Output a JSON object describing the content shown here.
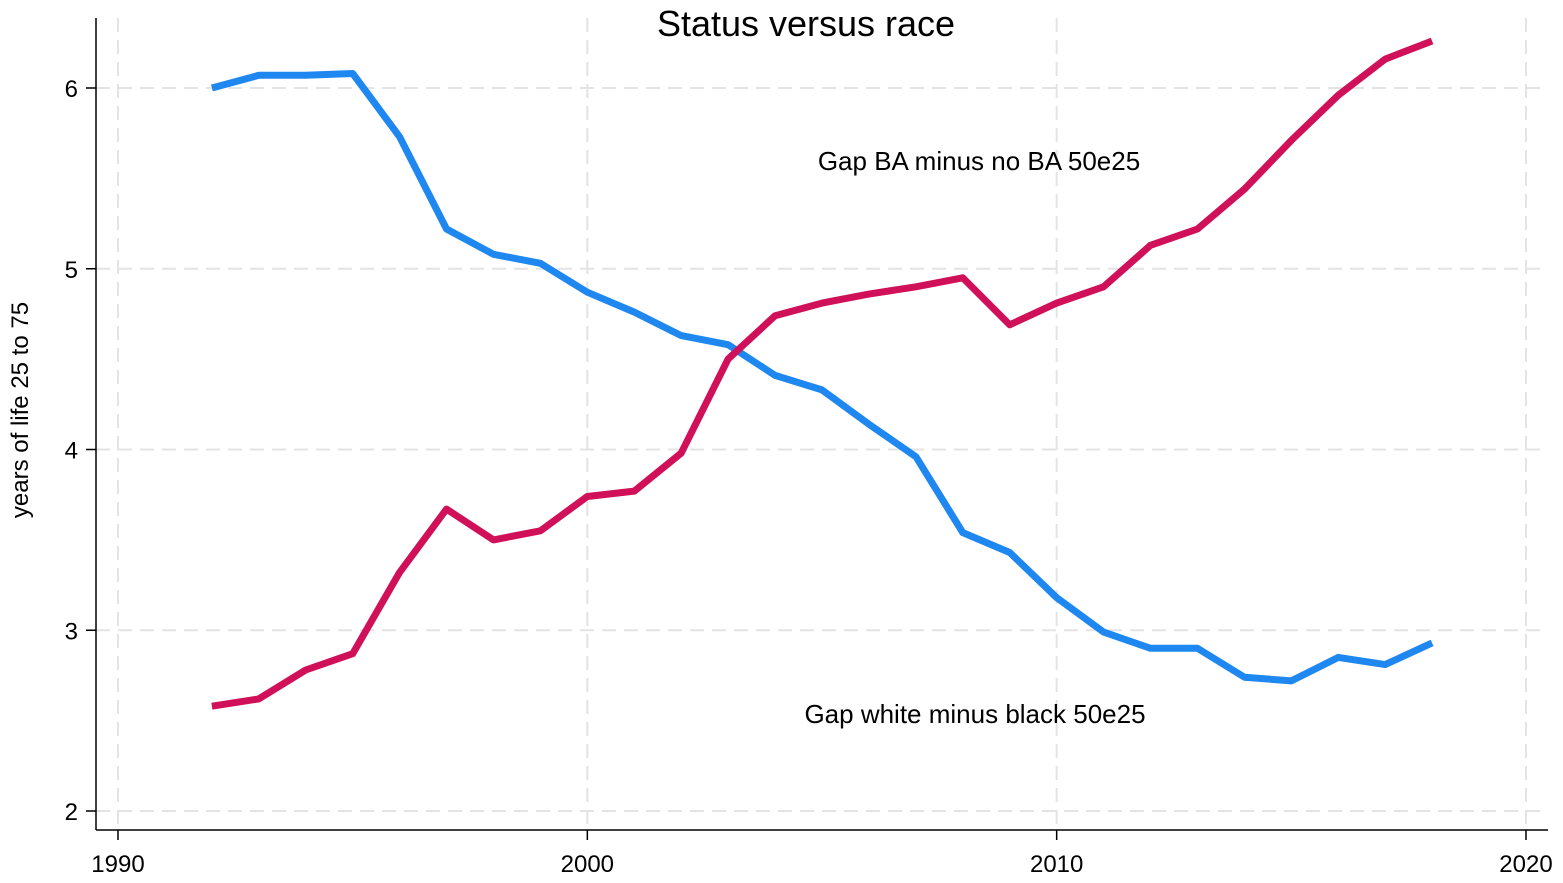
{
  "chart_data": {
    "type": "line",
    "title": "Status versus race",
    "xlabel": "",
    "ylabel": "years of life 25 to 75",
    "xlim": [
      1990,
      2020
    ],
    "ylim": [
      2,
      6.3
    ],
    "x_ticks": [
      "1990",
      "2000",
      "2010",
      "2020"
    ],
    "y_ticks": [
      "2",
      "3",
      "4",
      "5",
      "6"
    ],
    "grid": true,
    "x": [
      1992,
      1993,
      1994,
      1995,
      1996,
      1997,
      1998,
      1999,
      2000,
      2001,
      2002,
      2003,
      2004,
      2005,
      2006,
      2007,
      2008,
      2009,
      2010,
      2011,
      2012,
      2013,
      2014,
      2015,
      2016,
      2017,
      2018
    ],
    "series": [
      {
        "name": "Gap white minus black 50e25",
        "color": "#1e88f0",
        "values": [
          6.0,
          6.07,
          6.07,
          6.08,
          5.73,
          5.22,
          5.08,
          5.03,
          4.87,
          4.76,
          4.63,
          4.58,
          4.41,
          4.33,
          4.14,
          3.96,
          3.54,
          3.43,
          3.18,
          2.99,
          2.9,
          2.9,
          2.74,
          2.72,
          2.85,
          2.81,
          2.93
        ]
      },
      {
        "name": "Gap BA minus no BA 50e25",
        "color": "#d1105a",
        "values": [
          2.58,
          2.62,
          2.78,
          2.87,
          3.32,
          3.67,
          3.5,
          3.55,
          3.74,
          3.77,
          3.98,
          4.5,
          4.74,
          4.81,
          4.86,
          4.9,
          4.95,
          4.69,
          4.81,
          4.9,
          5.13,
          5.22,
          5.44,
          5.71,
          5.96,
          6.16,
          6.26
        ]
      }
    ]
  }
}
